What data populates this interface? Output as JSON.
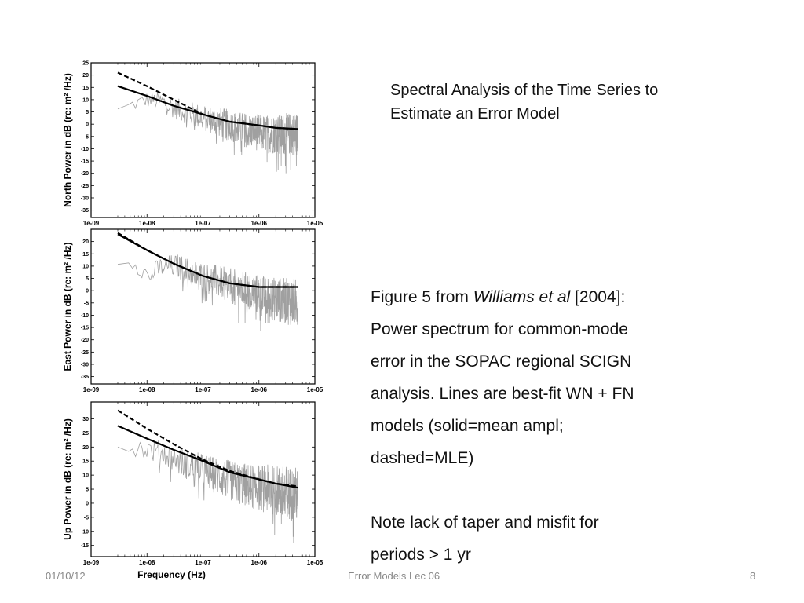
{
  "slide": {
    "title": "Spectral Analysis of the Time Series to Estimate an Error Model",
    "caption": {
      "line1_prefix": "Figure 5 from ",
      "line1_italic": "Williams et al",
      "line1_suffix": " [2004]:",
      "line2": "Power spectrum for common-mode",
      "line3": "error in the SOPAC regional SCIGN",
      "line4": "analysis.  Lines are best-fit WN + FN",
      "line5": "models (solid=mean ampl;",
      "line6": "dashed=MLE)",
      "note1": "Note lack of taper and misfit for",
      "note2": "periods > 1 yr"
    },
    "footer": {
      "date": "01/10/12",
      "center": "Error Models Lec 06",
      "page": "8"
    }
  },
  "colors": {
    "spectrum": "#a0a0a0",
    "model": "#000000",
    "footer_text": "#888888"
  },
  "chart_data": [
    {
      "type": "line",
      "ylabel": "North Power in dB (re: m² /Hz)",
      "xlabel": "",
      "xscale": "log",
      "xlim": [
        1e-09,
        1e-05
      ],
      "ylim": [
        -38,
        25
      ],
      "yticks": [
        "25",
        "20",
        "15",
        "10",
        "5",
        "0",
        "-5",
        "-10",
        "-15",
        "-20",
        "-25",
        "-30",
        "-35"
      ],
      "ytick_values": [
        25,
        20,
        15,
        10,
        5,
        0,
        -5,
        -10,
        -15,
        -20,
        -25,
        -30,
        -35
      ],
      "xticks": [
        "1e-09",
        "1e-08",
        "1e-07",
        "1e-06",
        "1e-05"
      ],
      "xtick_values": [
        1e-09,
        1e-08,
        1e-07,
        1e-06,
        1e-05
      ],
      "spectrum_freq_range": [
        3e-09,
        5e-06
      ],
      "spectrum_mean": [
        5.5,
        8,
        10,
        9,
        6,
        4,
        2,
        0.5,
        -1.5,
        -3,
        -4,
        -4,
        -4
      ],
      "spectrum_spread": 9,
      "series": [
        {
          "style": "solid",
          "x": [
            3e-09,
            1e-08,
            3e-08,
            1e-07,
            3e-07,
            1e-06,
            2e-06,
            5e-06
          ],
          "y": [
            15.5,
            11.5,
            7.5,
            4,
            1,
            -0.5,
            -1.5,
            -2
          ]
        },
        {
          "style": "dashed",
          "x": [
            3e-09,
            1e-08,
            3e-08,
            1e-07,
            3e-07,
            1e-06,
            2e-06,
            5e-06
          ],
          "y": [
            21,
            15.5,
            10,
            4,
            1,
            -0.5,
            -1.5,
            -2
          ]
        }
      ]
    },
    {
      "type": "line",
      "ylabel": "East Power in dB (re: m² /Hz)",
      "xlabel": "",
      "xscale": "log",
      "xlim": [
        1e-09,
        1e-05
      ],
      "ylim": [
        -38,
        25
      ],
      "yticks": [
        "20",
        "15",
        "10",
        "5",
        "0",
        "-5",
        "-10",
        "-15",
        "-20",
        "-25",
        "-30",
        "-35"
      ],
      "ytick_values": [
        20,
        15,
        10,
        5,
        0,
        -5,
        -10,
        -15,
        -20,
        -25,
        -30,
        -35
      ],
      "xticks": [
        "1e-09",
        "1e-08",
        "1e-07",
        "1e-06",
        "1e-05"
      ],
      "xtick_values": [
        1e-09,
        1e-08,
        1e-07,
        1e-06,
        1e-05
      ],
      "spectrum_freq_range": [
        3e-09,
        5e-06
      ],
      "spectrum_mean": [
        12,
        12,
        6,
        10,
        10,
        7,
        5,
        3,
        1,
        -1,
        -3,
        -4,
        -5
      ],
      "spectrum_spread": 10,
      "series": [
        {
          "style": "solid",
          "x": [
            3e-09,
            1e-08,
            3e-08,
            1e-07,
            3e-07,
            1e-06,
            2e-06,
            5e-06
          ],
          "y": [
            23,
            16.5,
            11,
            6,
            3,
            1.5,
            1.5,
            1.5
          ]
        },
        {
          "style": "dashed",
          "x": [
            3e-09,
            1e-08,
            3e-08,
            1e-07,
            3e-07,
            1e-06,
            2e-06,
            5e-06
          ],
          "y": [
            23.5,
            16.5,
            11,
            6,
            3,
            1.5,
            1.5,
            1.5
          ]
        }
      ]
    },
    {
      "type": "line",
      "ylabel": "Up Power in dB (re: m² /Hz)",
      "xlabel": "Frequency (Hz)",
      "xscale": "log",
      "xlim": [
        1e-09,
        1e-05
      ],
      "ylim": [
        -19,
        36
      ],
      "yticks": [
        "30",
        "25",
        "20",
        "15",
        "10",
        "5",
        "0",
        "-5",
        "-10",
        "-15"
      ],
      "ytick_values": [
        30,
        25,
        20,
        15,
        10,
        5,
        0,
        -5,
        -10,
        -15
      ],
      "xticks": [
        "1e-09",
        "1e-08",
        "1e-07",
        "1e-06",
        "1e-05"
      ],
      "xtick_values": [
        1e-09,
        1e-08,
        1e-07,
        1e-06,
        1e-05
      ],
      "spectrum_freq_range": [
        3e-09,
        5e-06
      ],
      "spectrum_mean": [
        19.5,
        20,
        19,
        18,
        15,
        13,
        11,
        9,
        7,
        6,
        5,
        4,
        3
      ],
      "spectrum_spread": 10,
      "series": [
        {
          "style": "solid",
          "x": [
            3e-09,
            1e-08,
            3e-08,
            1e-07,
            3e-07,
            1e-06,
            2e-06,
            5e-06
          ],
          "y": [
            27.5,
            23,
            19,
            15,
            11,
            8.5,
            7,
            5.5
          ]
        },
        {
          "style": "dashed",
          "x": [
            3e-09,
            1e-08,
            3e-08,
            1e-07,
            3e-07,
            1e-06,
            2e-06,
            5e-06
          ],
          "y": [
            33,
            26.5,
            21,
            15.5,
            11.5,
            8.5,
            7,
            6
          ]
        }
      ]
    }
  ]
}
